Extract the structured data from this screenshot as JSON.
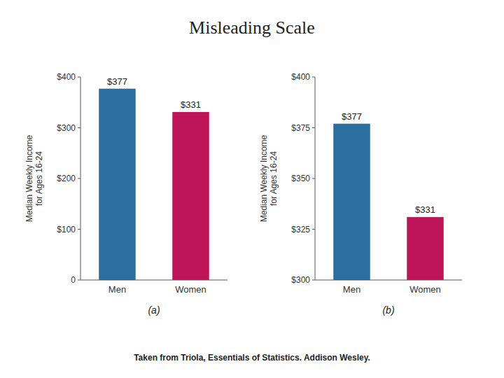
{
  "chart_data": [
    {
      "type": "bar",
      "title": "Misleading Scale",
      "subtitle": "(a)",
      "annotations": [
        "Taken from Triola, Essentials of Statistics.  Addison Wesley."
      ],
      "categories": [
        "Men",
        "Women"
      ],
      "values": [
        377,
        331
      ],
      "value_labels": [
        "$377",
        "$331"
      ],
      "data_labels": true,
      "colors": [
        "#2b6fa0",
        "#be1558"
      ],
      "ylabel": "Median Weekly Income\nfor Ages 16-24",
      "ylim": [
        0,
        400
      ],
      "yticks": [
        0,
        {
          "value": 100,
          "label": "$100"
        },
        {
          "value": 200,
          "label": "$200"
        },
        {
          "value": 300,
          "label": "$300"
        },
        {
          "value": 400,
          "label": "$400"
        }
      ],
      "grid": false
    },
    {
      "type": "bar",
      "subtitle": "(b)",
      "categories": [
        "Men",
        "Women"
      ],
      "values": [
        377,
        331
      ],
      "value_labels": [
        "$377",
        "$331"
      ],
      "data_labels": true,
      "colors": [
        "#2b6fa0",
        "#be1558"
      ],
      "ylabel": "Median Weekly Income\nfor Ages 16-24",
      "ylim": [
        300,
        400
      ],
      "yticks": [
        {
          "value": 300,
          "label": "$300"
        },
        {
          "value": 325,
          "label": "$325"
        },
        {
          "value": 350,
          "label": "$350"
        },
        {
          "value": 375,
          "label": "$375"
        },
        {
          "value": 400,
          "label": "$400"
        }
      ],
      "grid": false
    }
  ]
}
